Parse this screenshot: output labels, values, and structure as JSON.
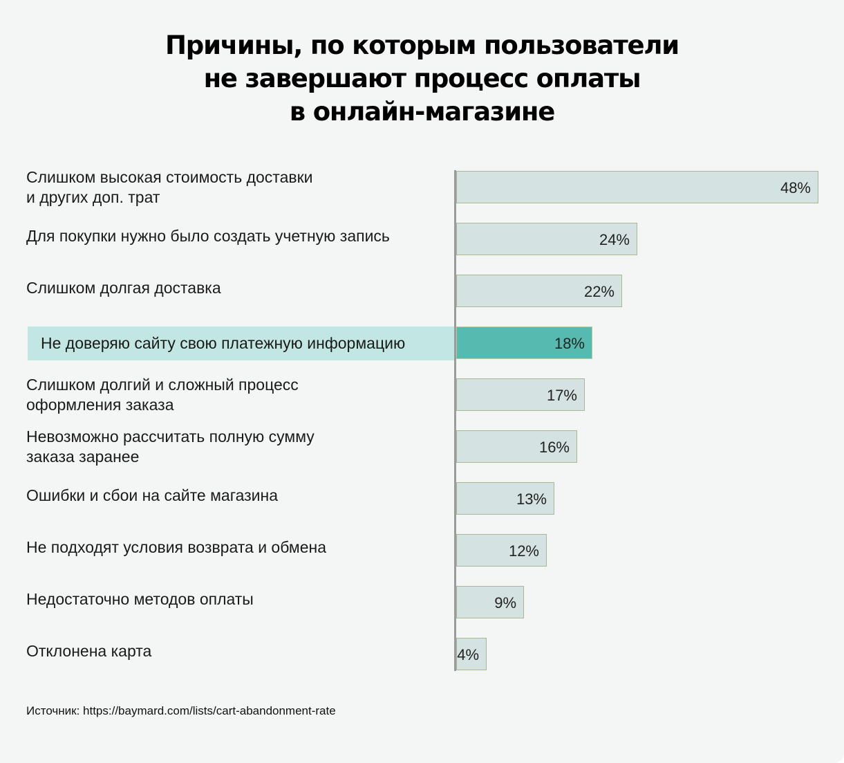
{
  "chart_data": {
    "type": "bar",
    "orientation": "horizontal",
    "title": "Причины, по которым пользователи не завершают процесс оплаты в онлайн-магазине",
    "title_lines": [
      "Причины, по которым пользователи",
      "не завершают процесс оплаты",
      "в онлайн-магазине"
    ],
    "categories": [
      "Слишком высокая стоимость доставки и других доп. трат",
      "Для покупки нужно было создать учетную запись",
      "Слишком долгая доставка",
      "Не доверяю сайту свою платежную информацию",
      "Слишком долгий и сложный процесс оформления заказа",
      "Невозможно рассчитать полную сумму заказа заранее",
      "Ошибки и сбои на сайте магазина",
      "Не подходят условия возврата и обмена",
      "Недостаточно методов оплаты",
      "Отклонена карта"
    ],
    "category_lines": [
      [
        "Слишком высокая стоимость доставки",
        "и других доп. трат"
      ],
      [
        "Для покупки нужно было создать учетную запись"
      ],
      [
        "Слишком долгая доставка"
      ],
      [
        "Не доверяю сайту свою платежную информацию"
      ],
      [
        "Слишком долгий и сложный процесс",
        "оформления заказа"
      ],
      [
        "Невозможно рассчитать полную сумму",
        "заказа заранее"
      ],
      [
        "Ошибки и сбои на сайте магазина"
      ],
      [
        "Не подходят условия возврата и обмена"
      ],
      [
        "Недостаточно методов оплаты"
      ],
      [
        "Отклонена карта"
      ]
    ],
    "values": [
      48,
      24,
      22,
      18,
      17,
      16,
      13,
      12,
      9,
      4
    ],
    "value_labels": [
      "48%",
      "24%",
      "22%",
      "18%",
      "17%",
      "16%",
      "13%",
      "12%",
      "9%",
      "4%"
    ],
    "unit": "%",
    "highlighted_index": 3,
    "xlim": [
      0,
      48
    ],
    "xlabel": "",
    "ylabel": "",
    "grid": false,
    "legend": "none",
    "colors": {
      "bar": "#d4e2e2",
      "bar_border": "#a8b892",
      "highlight_bar": "#55bab0",
      "highlight_label_bg": "#c2e6e1",
      "axis": "#9b9b9b",
      "background": "#f4f6f5"
    }
  },
  "source": "Источник: https://baymard.com/lists/cart-abandonment-rate"
}
